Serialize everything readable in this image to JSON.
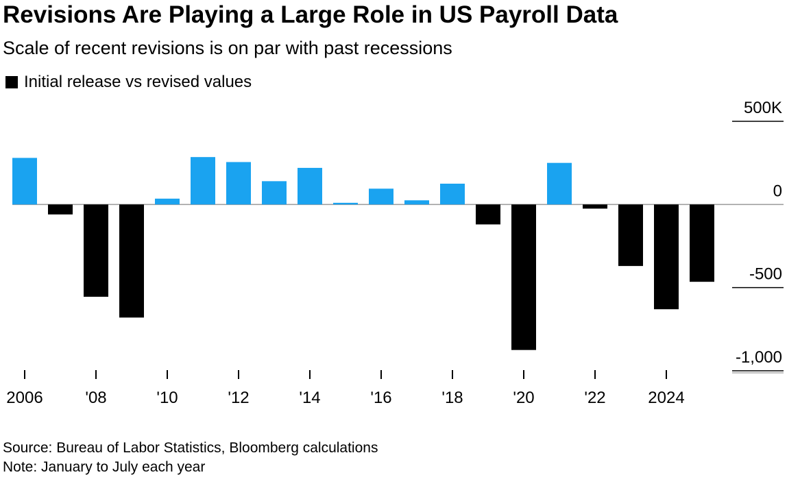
{
  "title": "Revisions Are Playing a Large Role in US Payroll Data",
  "subtitle": "Scale of recent revisions is on par with past recessions",
  "legend": {
    "label": "Initial release vs revised values"
  },
  "source": "Source: Bureau of Labor Statistics, Bloomberg calculations",
  "note": "Note: January to July each year",
  "colors": {
    "positive": "#1aa3f0",
    "negative": "#000000",
    "gridline": "#000000",
    "axis_line": "#999999"
  },
  "chart_data": {
    "type": "bar",
    "categories": [
      "2006",
      "2007",
      "2008",
      "2009",
      "2010",
      "2011",
      "2012",
      "2013",
      "2014",
      "2015",
      "2016",
      "2017",
      "2018",
      "2019",
      "2020",
      "2021",
      "2022",
      "2023",
      "2024",
      "2025"
    ],
    "values": [
      280,
      -60,
      -555,
      -680,
      35,
      285,
      255,
      140,
      220,
      10,
      95,
      25,
      125,
      -120,
      -875,
      250,
      -25,
      -370,
      -630,
      -465
    ],
    "ylim": [
      -1000,
      500
    ],
    "yticks": [
      {
        "value": 500,
        "label": "500K"
      },
      {
        "value": 0,
        "label": "0"
      },
      {
        "value": -500,
        "label": "-500"
      },
      {
        "value": -1000,
        "label": "-1,000"
      }
    ],
    "xticks": [
      {
        "year": 2006,
        "label": "2006"
      },
      {
        "year": 2008,
        "label": "'08"
      },
      {
        "year": 2010,
        "label": "'10"
      },
      {
        "year": 2012,
        "label": "'12"
      },
      {
        "year": 2014,
        "label": "'14"
      },
      {
        "year": 2016,
        "label": "'16"
      },
      {
        "year": 2018,
        "label": "'18"
      },
      {
        "year": 2020,
        "label": "'20"
      },
      {
        "year": 2022,
        "label": "'22"
      },
      {
        "year": 2024,
        "label": "2024"
      }
    ],
    "xlabel": "",
    "ylabel": "",
    "grid": true,
    "legend_position": "top-left"
  }
}
